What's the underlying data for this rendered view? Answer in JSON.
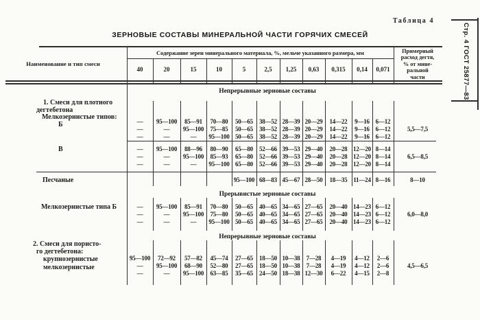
{
  "page_label": "Таблица 4",
  "gost_note": "Стр. 4 ГОСТ 25877—83",
  "title": "ЗЕРНОВЫЕ СОСТАВЫ МИНЕРАЛЬНОЙ ЧАСТИ ГОРЯЧИХ СМЕСЕЙ",
  "ink_color": "#1b1b1b",
  "paper_color": "#fbfbf8",
  "header": {
    "name_col": "Наименование и тип смеси",
    "content_span": "Содержание зерен минерального материала, %, мельче указанного размера, мм",
    "sizes": [
      "40",
      "20",
      "15",
      "10",
      "5",
      "2,5",
      "1,25",
      "0,63",
      "0,315",
      "0,14",
      "0,071"
    ],
    "tar_col_lines": [
      "Примерный",
      "расход дегтя,",
      "% от мине-",
      "ральной",
      "части"
    ]
  },
  "sections": [
    {
      "band": "Непрерывные зерновые составы",
      "groups": [
        {
          "label_lines": [
            "1. Смеси для плотного",
            "дегтебетона",
            "Мелкозернистые типов:",
            "Б"
          ],
          "rows": [
            [
              "—",
              "95—100",
              "85—91",
              "70—80",
              "50—65",
              "38—52",
              "28—39",
              "20—29",
              "14—22",
              "9—16",
              "6—12"
            ],
            [
              "—",
              "—",
              "95—100",
              "75—85",
              "50—65",
              "38—52",
              "28—39",
              "20—29",
              "14—22",
              "9—16",
              "6—12"
            ],
            [
              "—",
              "—",
              "—",
              "95—100",
              "50—65",
              "38—52",
              "28—39",
              "20—29",
              "14—22",
              "9—16",
              "6—12"
            ]
          ],
          "tar": "5,5—7,5"
        },
        {
          "label_lines": [
            "В"
          ],
          "rows": [
            [
              "—",
              "95—100",
              "88—96",
              "80—90",
              "65—80",
              "52—66",
              "39—53",
              "29—40",
              "20—28",
              "12—20",
              "8—14"
            ],
            [
              "—",
              "—",
              "95—100",
              "85—93",
              "65—80",
              "52—66",
              "39—53",
              "29—40",
              "20—28",
              "12—20",
              "8—14"
            ],
            [
              "—",
              "—",
              "—",
              "95—100",
              "65—80",
              "52—66",
              "39—53",
              "29—40",
              "20—28",
              "12—20",
              "8—14"
            ]
          ],
          "tar": "6,5—8,5"
        },
        {
          "label_lines": [
            "Песчаные"
          ],
          "rows": [
            [
              "",
              "",
              "",
              "",
              "95—100",
              "68—83",
              "45—67",
              "28—50",
              "18—35",
              "11—24",
              "8—16"
            ]
          ],
          "tar": "8—10"
        }
      ]
    },
    {
      "band": "Прерывистые зерновые составы",
      "groups": [
        {
          "label_lines": [
            "Мелкозернистые типа Б"
          ],
          "rows": [
            [
              "—",
              "95—100",
              "85—91",
              "70—80",
              "50—65",
              "40—65",
              "34—65",
              "27—65",
              "20—40",
              "14—23",
              "6—12"
            ],
            [
              "—",
              "—",
              "95—100",
              "75—80",
              "50—65",
              "40—65",
              "34—65",
              "27—65",
              "20—40",
              "14—23",
              "6—12"
            ],
            [
              "—",
              "—",
              "—",
              "95—100",
              "50—65",
              "40—65",
              "34—65",
              "27—65",
              "20—40",
              "14—23",
              "6—12"
            ]
          ],
          "tar": "6,0—8,0"
        }
      ]
    },
    {
      "band": "Непрерывные зерновые составы",
      "groups": [
        {
          "label_lines": [
            "2. Смеси для пористо-",
            "го дегтебетона:",
            "крупнозернистые",
            "мелкозернистые"
          ],
          "rows": [
            [
              "95—100",
              "72—92",
              "57—82",
              "45—74",
              "27—65",
              "18—50",
              "10—38",
              "7—28",
              "4—19",
              "4—12",
              "2—6"
            ],
            [
              "—",
              "95—100",
              "68—90",
              "52—80",
              "27—65",
              "18—50",
              "10—38",
              "7—28",
              "4—19",
              "4—12",
              "2—6"
            ],
            [
              "—",
              "—",
              "95—100",
              "63—85",
              "35—65",
              "24—50",
              "18—38",
              "12—30",
              "6—22",
              "4—15",
              "2—8"
            ]
          ],
          "tar": "4,5—6,5"
        }
      ]
    }
  ]
}
